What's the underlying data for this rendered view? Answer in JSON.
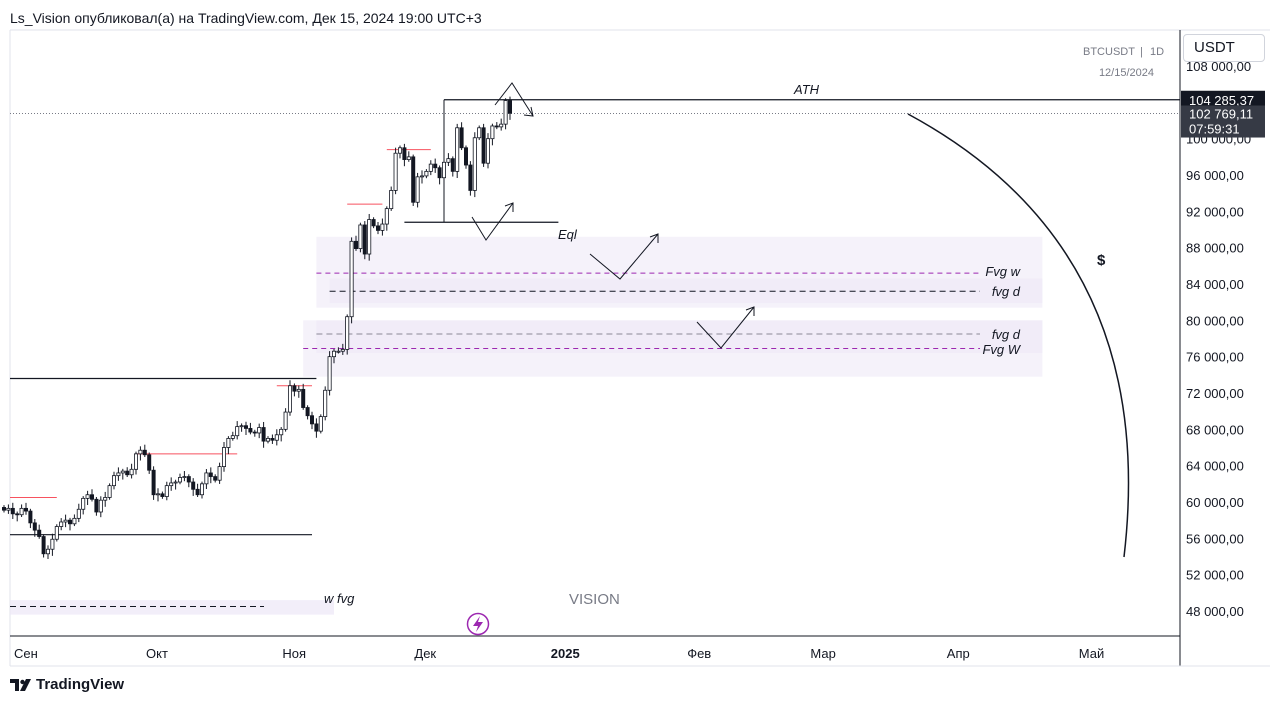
{
  "header": {
    "publisher_line": "Ls_Vision опубликовал(а) на TradingView.com, Дек 15, 2024 19:00 UTC+3"
  },
  "toolbar": {
    "currency": "USDT"
  },
  "footer": {
    "brand": "TradingView"
  },
  "colors": {
    "candle_up_fill": "#ffffff",
    "candle_down_fill": "#131722",
    "fvg_fill": "#ede7f6",
    "fvg_weekly_line": "#9c27b0",
    "level_line": "#131722",
    "swing_high_line": "#f7525f",
    "axis_text": "#131722",
    "watermark": "#787b86"
  },
  "chart_data": {
    "type": "candlestick",
    "symbol": "BTCUSDT",
    "interval": "1D",
    "date_label": "12/15/2024",
    "watermark": "VISION",
    "y_axis": {
      "min": 45000,
      "max": 110000,
      "ticks": [
        "108 000,00",
        "100 000,00",
        "96 000,00",
        "92 000,00",
        "88 000,00",
        "84 000,00",
        "80 000,00",
        "76 000,00",
        "72 000,00",
        "68 000,00",
        "64 000,00",
        "60 000,00",
        "56 000,00",
        "52 000,00",
        "48 000,00"
      ],
      "tick_values": [
        108000,
        100000,
        96000,
        92000,
        88000,
        84000,
        80000,
        76000,
        72000,
        68000,
        64000,
        60000,
        56000,
        52000,
        48000
      ]
    },
    "x_axis": {
      "labels": [
        "Сен",
        "Окт",
        "Ноя",
        "Дек",
        "2025",
        "Фев",
        "Мар",
        "Апр",
        "Май"
      ],
      "label_dates": [
        "2024-09-01",
        "2024-10-01",
        "2024-11-01",
        "2024-12-01",
        "2025-01-01",
        "2025-02-01",
        "2025-03-01",
        "2025-04-01",
        "2025-05-01"
      ],
      "bold": [
        "2025"
      ],
      "start": "2024-08-27",
      "end": "2025-05-31"
    },
    "price_labels": [
      {
        "value": 104285.37,
        "text": "104 285,37"
      },
      {
        "value": 102769.11,
        "text": "102 769,11",
        "countdown": "07:59:31"
      }
    ],
    "closes": [
      59100,
      59300,
      58700,
      58600,
      59300,
      59000,
      57700,
      56900,
      56200,
      54300,
      54800,
      55900,
      57300,
      57800,
      58000,
      57600,
      58200,
      59200,
      60400,
      60800,
      60300,
      58900,
      60200,
      60500,
      61800,
      62900,
      63200,
      63400,
      63000,
      63600,
      65300,
      65700,
      65200,
      63500,
      60800,
      60900,
      60600,
      61800,
      62100,
      62200,
      62700,
      62800,
      62200,
      61400,
      60800,
      62000,
      63200,
      62800,
      62400,
      63900,
      66000,
      67000,
      67300,
      68300,
      68400,
      68100,
      67700,
      67600,
      68200,
      66700,
      67000,
      66800,
      67400,
      68000,
      69900,
      72800,
      72200,
      72400,
      70400,
      69500,
      68600,
      67800,
      69400,
      72300,
      76000,
      76600,
      76600,
      76800,
      80400,
      88700,
      87900,
      90500,
      87300,
      91100,
      90400,
      89900,
      90600,
      92300,
      94300,
      98400,
      99000,
      97700,
      98000,
      93000,
      95800,
      95900,
      96400,
      97200,
      96800,
      95700,
      97400,
      97800,
      96400,
      101200,
      99000,
      97100,
      94300,
      100100,
      101200,
      97300,
      100000,
      101400,
      101300,
      101600,
      104200,
      102800
    ],
    "levels": [
      {
        "name": "ATH",
        "value": 104285.37,
        "from": "2024-12-05",
        "to": "2025-05-31"
      },
      {
        "name": "Eql",
        "value": 90800,
        "from": "2024-11-26",
        "to": "2024-12-31"
      },
      {
        "name": "range-high",
        "value": 73600,
        "from": "2024-08-27",
        "to": "2024-11-06"
      },
      {
        "name": "range-low",
        "value": 56400,
        "from": "2024-08-27",
        "to": "2024-11-05"
      }
    ],
    "zones": [
      {
        "label": "Fvg w",
        "top": 89200,
        "bottom": 81400,
        "from": "2024-11-06",
        "to": "2025-04-20",
        "midline": 85200,
        "line_style": "weekly"
      },
      {
        "label": "fvg d",
        "top": 84600,
        "bottom": 81900,
        "from": "2024-11-09",
        "to": "2025-04-20",
        "midline": 83200,
        "line_style": "daily"
      },
      {
        "label": "fvg d",
        "top": 80000,
        "bottom": 76400,
        "from": "2024-11-06",
        "to": "2025-04-20",
        "midline": 78500,
        "line_style": "daily"
      },
      {
        "label": "Fvg W",
        "top": 80000,
        "bottom": 73800,
        "from": "2024-11-03",
        "to": "2025-04-20",
        "midline": 76900,
        "line_style": "weekly"
      },
      {
        "label": "w fvg",
        "top": 49200,
        "bottom": 47600,
        "from": "2024-08-27",
        "to": "2024-11-10",
        "midline": 48500,
        "line_style": "daily"
      }
    ],
    "annotations": [
      "ATH",
      "Eql",
      "Fvg w",
      "fvg d",
      "fvg d",
      "Fvg W",
      "w fvg",
      "$"
    ]
  }
}
